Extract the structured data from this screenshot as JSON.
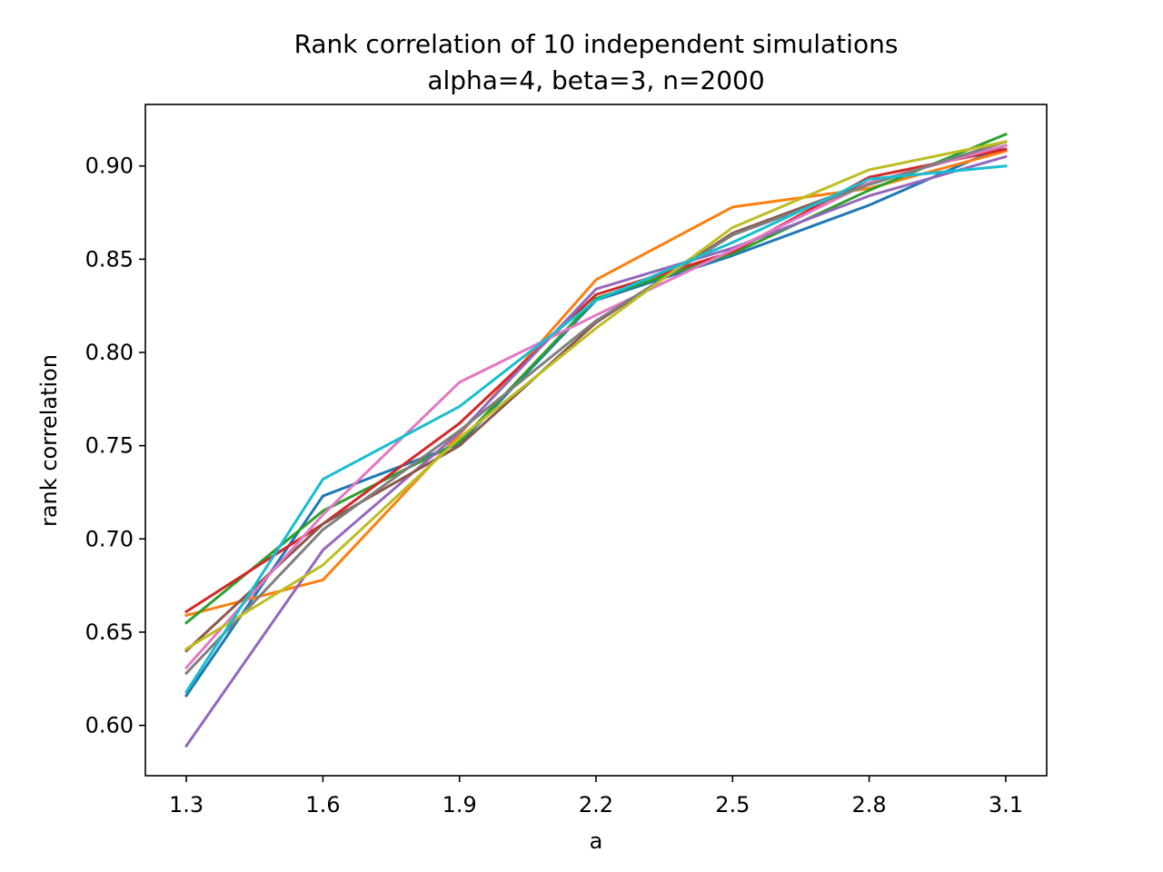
{
  "chart_data": {
    "type": "line",
    "title": "Rank correlation of 10 independent simulations",
    "subtitle": "alpha=4, beta=3, n=2000",
    "xlabel": "a",
    "ylabel": "rank correlation",
    "x": [
      1.3,
      1.6,
      1.9,
      2.2,
      2.5,
      2.8,
      3.1
    ],
    "x_tick_labels": [
      "1.3",
      "1.6",
      "1.9",
      "2.2",
      "2.5",
      "2.8",
      "3.1"
    ],
    "y_ticks": [
      0.6,
      0.65,
      0.7,
      0.75,
      0.8,
      0.85,
      0.9
    ],
    "y_tick_labels": [
      "0.60",
      "0.65",
      "0.70",
      "0.75",
      "0.80",
      "0.85",
      "0.90"
    ],
    "xlim": [
      1.21,
      3.19
    ],
    "ylim": [
      0.573,
      0.933
    ],
    "grid": false,
    "legend": "none",
    "series": [
      {
        "color": "#1f77b4",
        "values": [
          0.616,
          0.723,
          0.751,
          0.828,
          0.852,
          0.879,
          0.911
        ]
      },
      {
        "color": "#ff7f0e",
        "values": [
          0.659,
          0.678,
          0.756,
          0.839,
          0.878,
          0.888,
          0.908
        ]
      },
      {
        "color": "#2ca02c",
        "values": [
          0.655,
          0.715,
          0.752,
          0.829,
          0.853,
          0.887,
          0.917
        ]
      },
      {
        "color": "#d62728",
        "values": [
          0.661,
          0.708,
          0.762,
          0.831,
          0.854,
          0.894,
          0.909
        ]
      },
      {
        "color": "#9467bd",
        "values": [
          0.589,
          0.694,
          0.757,
          0.834,
          0.856,
          0.884,
          0.905
        ]
      },
      {
        "color": "#8c564b",
        "values": [
          0.64,
          0.708,
          0.75,
          0.816,
          0.864,
          0.891,
          0.911
        ]
      },
      {
        "color": "#e377c2",
        "values": [
          0.631,
          0.713,
          0.784,
          0.82,
          0.855,
          0.891,
          0.911
        ]
      },
      {
        "color": "#7f7f7f",
        "values": [
          0.628,
          0.705,
          0.758,
          0.817,
          0.863,
          0.89,
          0.913
        ]
      },
      {
        "color": "#bcbd22",
        "values": [
          0.641,
          0.686,
          0.754,
          0.813,
          0.867,
          0.898,
          0.913
        ]
      },
      {
        "color": "#17becf",
        "values": [
          0.618,
          0.732,
          0.771,
          0.828,
          0.859,
          0.893,
          0.9
        ]
      }
    ]
  }
}
